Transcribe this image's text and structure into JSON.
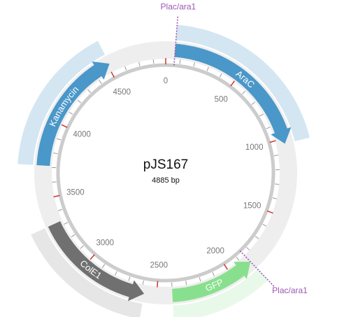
{
  "plasmid": {
    "name": "pJS167",
    "length_bp": 4885,
    "length_label": "4885 bp",
    "tick_labels": [
      "0",
      "500",
      "1000",
      "1500",
      "2000",
      "2500",
      "3000",
      "3500",
      "4000",
      "4500"
    ]
  },
  "features": [
    {
      "id": "arac",
      "label": "AraC",
      "start_bp": 60,
      "end_bp": 1035,
      "direction": "forward",
      "color": "#4a97c9",
      "shade_color": "#d4e6f2"
    },
    {
      "id": "gfp",
      "label": "GFP",
      "start_bp": 1850,
      "end_bp": 2400,
      "direction": "reverse",
      "color": "#88e08e",
      "shade_color": "#e8f9e9"
    },
    {
      "id": "cole1",
      "label": "ColE1",
      "start_bp": 2580,
      "end_bp": 3330,
      "direction": "reverse",
      "color": "#707070",
      "shade_color": "#e6e6e6"
    },
    {
      "id": "kanamycin",
      "label": "Kanamycin",
      "start_bp": 3710,
      "end_bp": 4515,
      "direction": "forward",
      "color": "#4a97c9",
      "shade_color": "#d4e6f2"
    }
  ],
  "promoters": [
    {
      "id": "plac-ara1-top",
      "label": "Plac/ara1",
      "position_bp": 60,
      "color": "#9a56b3"
    },
    {
      "id": "plac-ara1-bottom",
      "label": "Plac/ara1",
      "position_bp": 1850,
      "color": "#9a56b3"
    }
  ],
  "colors": {
    "backbone": "#cccccc",
    "track": "#eeeeee",
    "tick": "#999999",
    "major_tick": "#d03030"
  }
}
